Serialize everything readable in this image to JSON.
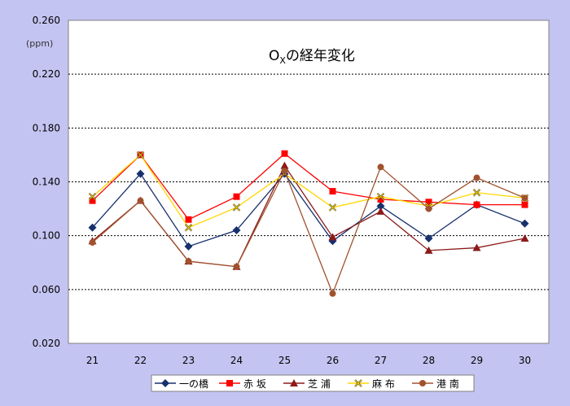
{
  "chart_data": {
    "type": "line",
    "title": "OXの経年変化",
    "title_parts": {
      "main": "O",
      "sub": "X",
      "rest": "の経年変化"
    },
    "y_unit": "(ppm)",
    "xlabel": "",
    "ylabel": "",
    "ylim": [
      0.02,
      0.26
    ],
    "y_ticks": [
      "0.260",
      "0.220",
      "0.180",
      "0.140",
      "0.100",
      "0.060",
      "0.020"
    ],
    "grid": true,
    "legend_position": "bottom",
    "categories": [
      "21",
      "22",
      "23",
      "24",
      "25",
      "26",
      "27",
      "28",
      "29",
      "30"
    ],
    "series": [
      {
        "name": "一の橋",
        "color": "#17306e",
        "marker": "diamond",
        "values": [
          0.106,
          0.146,
          0.092,
          0.104,
          0.146,
          0.096,
          0.122,
          0.098,
          0.123,
          0.109
        ]
      },
      {
        "name": "赤 坂",
        "color": "#ff0000",
        "marker": "square",
        "values": [
          0.126,
          0.16,
          0.112,
          0.129,
          0.161,
          0.133,
          0.127,
          0.125,
          0.123,
          0.123
        ]
      },
      {
        "name": "芝 浦",
        "color": "#8b1a1a",
        "marker": "triangle",
        "values": [
          0.096,
          0.126,
          0.081,
          0.077,
          0.152,
          0.099,
          0.118,
          0.089,
          0.091,
          0.098
        ]
      },
      {
        "name": "麻 布",
        "color": "#ffd700",
        "marker": "x",
        "values": [
          0.129,
          0.16,
          0.106,
          0.121,
          0.146,
          0.121,
          0.129,
          0.122,
          0.132,
          0.128
        ]
      },
      {
        "name": "港 南",
        "color": "#a0522d",
        "marker": "circle",
        "values": [
          0.095,
          0.126,
          0.081,
          0.077,
          0.148,
          0.057,
          0.151,
          0.12,
          0.143,
          0.128
        ]
      }
    ]
  }
}
